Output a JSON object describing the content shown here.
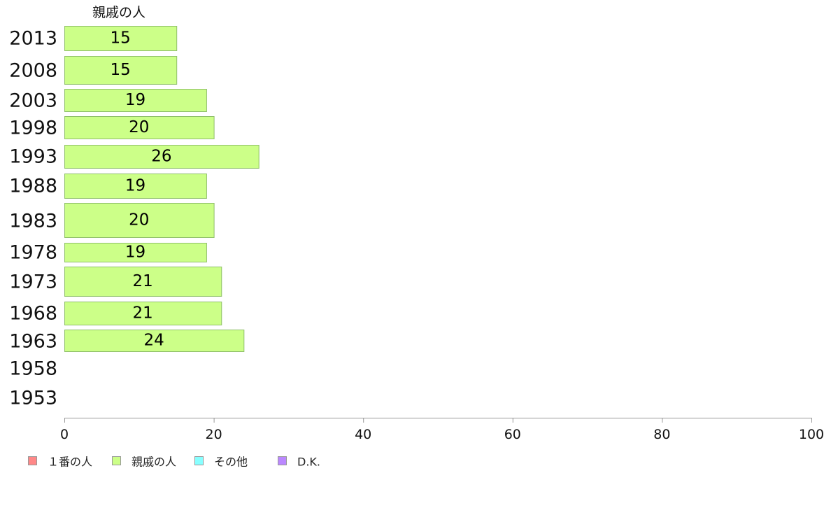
{
  "chart_data": {
    "type": "bar",
    "orientation": "horizontal",
    "title": "",
    "series_title": "親戚の人",
    "categories": [
      "2013",
      "2008",
      "2003",
      "1998",
      "1993",
      "1988",
      "1983",
      "1978",
      "1973",
      "1968",
      "1963",
      "1958",
      "1953"
    ],
    "series": [
      {
        "name": "親戚の人",
        "values": [
          15,
          15,
          19,
          20,
          26,
          19,
          20,
          19,
          21,
          21,
          24,
          null,
          null
        ],
        "labels": [
          "15",
          "15",
          "19",
          "20",
          "26",
          "19",
          "20",
          "19",
          "21",
          "21",
          "24",
          "",
          ""
        ],
        "color": "#ccff88"
      }
    ],
    "xlim": [
      0,
      100
    ],
    "xticks": [
      0,
      20,
      40,
      60,
      80,
      100
    ],
    "grid": false,
    "legend": {
      "placement": "bottom-left",
      "items": [
        {
          "label": "１番の人",
          "color": "#ff8888"
        },
        {
          "label": "親戚の人",
          "color": "#ccff88"
        },
        {
          "label": "その他",
          "color": "#88ffff"
        },
        {
          "label": "D.K.",
          "color": "#bb88ff"
        }
      ]
    }
  }
}
